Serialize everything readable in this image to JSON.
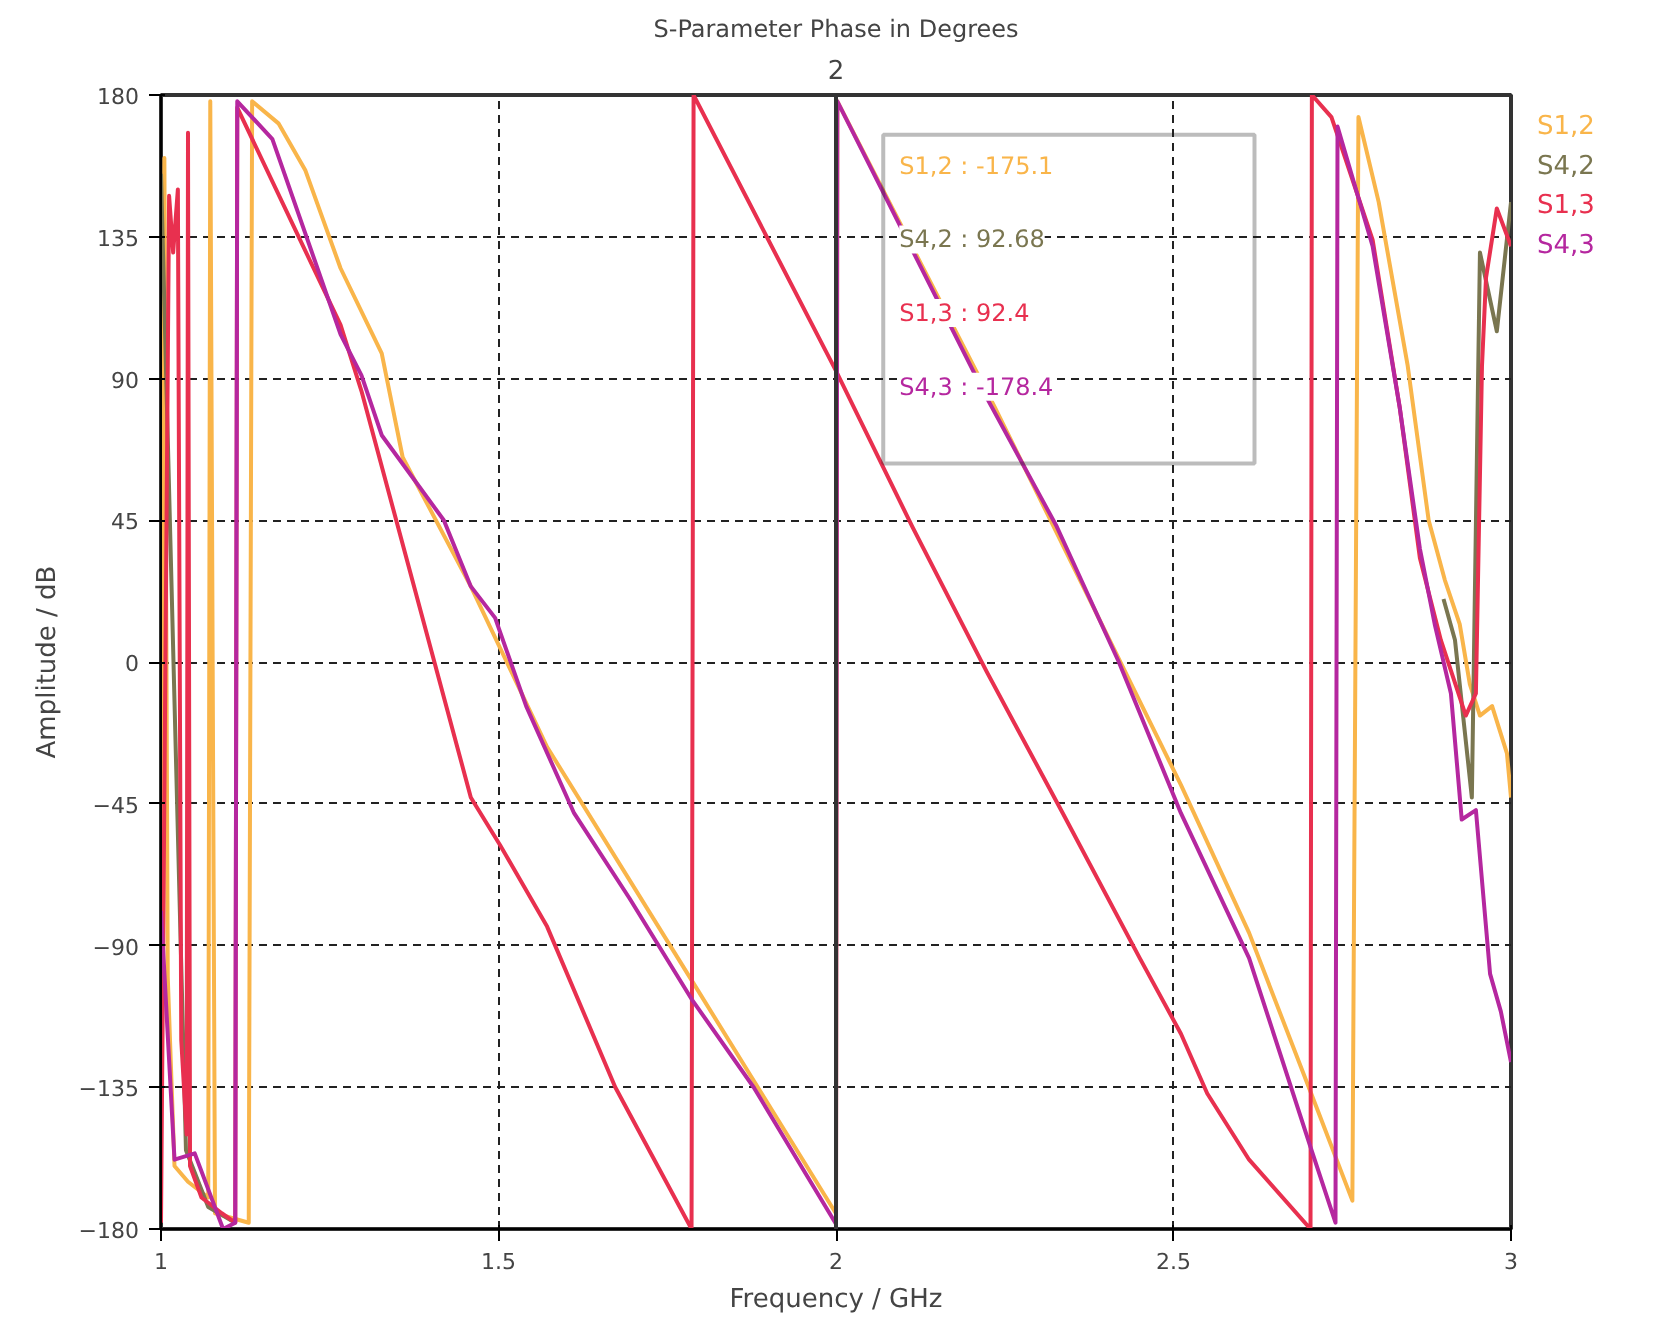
{
  "chart_data": {
    "type": "line",
    "title": "S-Parameter Phase in Degrees",
    "xlabel": "Frequency / GHz",
    "ylabel": "Amplitude / dB",
    "xlim": [
      1,
      3
    ],
    "ylim": [
      -180,
      180
    ],
    "xticks": [
      1,
      1.5,
      2,
      2.5,
      3
    ],
    "yticks": [
      -180,
      -135,
      -90,
      -45,
      0,
      45,
      90,
      135,
      180
    ],
    "grid": true,
    "line_style": "solid",
    "marker": "none",
    "ref_lines": [
      {
        "axis": "x",
        "value": 2,
        "label": "2",
        "color": "#333333"
      }
    ],
    "annotations": [
      "S1,2 : -175.1",
      "S4,2 : 92.68",
      "S1,3 : 92.4",
      "S4,3 : -178.4"
    ],
    "series": [
      {
        "name": "S1,2",
        "color": "#f9b54a",
        "x": [
          1.0,
          1.005,
          1.01,
          1.02,
          1.04,
          1.07,
          1.073,
          1.08,
          1.13,
          1.135,
          1.174,
          1.214,
          1.266,
          1.327,
          1.358,
          1.459,
          1.572,
          1.786,
          2.0,
          2.002,
          2.235,
          2.511,
          2.612,
          2.713,
          2.765,
          2.774,
          2.804,
          2.847,
          2.878,
          2.902,
          2.924,
          2.939,
          2.954,
          2.972,
          2.994,
          3.0
        ],
        "values": [
          -155,
          160,
          -100,
          -160,
          -165,
          -170,
          178,
          -175,
          -178,
          178,
          171,
          156,
          125,
          98,
          65,
          24,
          -27,
          -101,
          -175.1,
          178,
          81,
          -39,
          -86,
          -142,
          -171,
          173,
          146,
          94,
          45,
          26,
          12,
          -7,
          -17,
          -14,
          -29,
          -43
        ]
      },
      {
        "name": "S4,2",
        "color": "#7a7650",
        "x": [
          1.0,
          1.037,
          1.07,
          1.11,
          1.5,
          2.9,
          2.917,
          2.942,
          2.954,
          2.979,
          3.0
        ],
        "values": [
          155,
          -155,
          -173,
          -178,
          null,
          20,
          7,
          -43,
          130,
          105,
          146
        ]
      },
      {
        "name": "S1,3",
        "color": "#e8304f",
        "x": [
          1.0,
          1.012,
          1.018,
          1.025,
          1.03,
          1.038,
          1.04,
          1.043,
          1.06,
          1.09,
          1.11,
          1.113,
          1.266,
          1.297,
          1.459,
          1.502,
          1.572,
          1.673,
          1.786,
          1.789,
          2.0,
          2.113,
          2.223,
          2.336,
          2.45,
          2.511,
          2.55,
          2.612,
          2.703,
          2.705,
          2.734,
          2.795,
          2.835,
          2.865,
          2.896,
          2.933,
          2.948,
          2.957,
          2.963,
          2.979,
          3.0
        ],
        "values": [
          -178,
          148,
          130,
          150,
          -120,
          -150,
          168,
          -160,
          -170,
          -175,
          -178,
          176,
          107,
          86,
          -43,
          -58,
          -84,
          -135,
          -180,
          180,
          92.4,
          43,
          -3,
          -48,
          -94,
          -118,
          -137,
          -158,
          -180,
          180,
          173,
          134,
          81,
          33,
          7,
          -17,
          -10,
          94,
          122,
          144,
          132
        ]
      },
      {
        "name": "S4,3",
        "color": "#b5279f",
        "x": [
          1.0,
          1.02,
          1.05,
          1.092,
          1.11,
          1.113,
          1.165,
          1.266,
          1.297,
          1.327,
          1.419,
          1.459,
          1.495,
          1.541,
          1.612,
          1.694,
          1.786,
          1.878,
          2.0,
          2.002,
          2.223,
          2.327,
          2.419,
          2.511,
          2.612,
          2.703,
          2.74,
          2.743,
          2.795,
          2.835,
          2.865,
          2.887,
          2.911,
          2.927,
          2.948,
          2.969,
          2.985,
          3.0
        ],
        "values": [
          -79,
          -158,
          -156,
          -180,
          -178,
          178,
          166,
          104,
          91,
          72,
          45,
          24,
          14,
          -14,
          -48,
          -75,
          -107,
          -135,
          -178.4,
          178,
          84,
          43,
          0,
          -48,
          -94,
          -154,
          -178,
          170,
          132,
          81,
          36,
          12,
          -10,
          -50,
          -47,
          -99,
          -111,
          -127
        ]
      }
    ]
  }
}
